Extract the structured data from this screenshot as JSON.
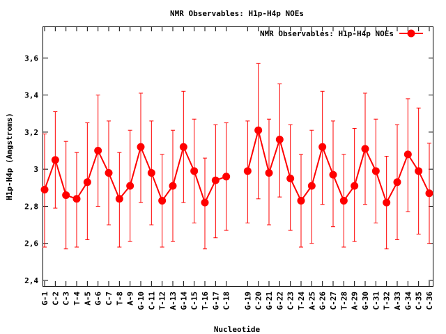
{
  "chart_data": {
    "type": "line",
    "title": "NMR Observables: H1p-H4p NOEs",
    "xlabel": "Nucleotide",
    "ylabel": "H1p-H4p (Angstroms)",
    "ylim": [
      2.37,
      3.77
    ],
    "yticks": [
      "2,4",
      "2,6",
      "2,8",
      "3",
      "3,2",
      "3,4",
      "3,6"
    ],
    "ytick_values": [
      2.4,
      2.6,
      2.8,
      3.0,
      3.2,
      3.4,
      3.6
    ],
    "xlim": [
      0,
      37
    ],
    "grid": false,
    "legend_position": "top-right",
    "series": [
      {
        "name": "NMR Observables: H1p-H4p NOEs",
        "color": "#ff0000",
        "marker": "circle",
        "points": [
          {
            "x": 1,
            "label": "G-1",
            "y": 2.89,
            "err_low": 2.58,
            "err_high": 3.19
          },
          {
            "x": 2,
            "label": "C-2",
            "y": 3.05,
            "err_low": 2.79,
            "err_high": 3.31
          },
          {
            "x": 3,
            "label": "C-3",
            "y": 2.86,
            "err_low": 2.57,
            "err_high": 3.15
          },
          {
            "x": 4,
            "label": "T-4",
            "y": 2.84,
            "err_low": 2.58,
            "err_high": 3.09
          },
          {
            "x": 5,
            "label": "A-5",
            "y": 2.93,
            "err_low": 2.62,
            "err_high": 3.25
          },
          {
            "x": 6,
            "label": "G-6",
            "y": 3.1,
            "err_low": 2.8,
            "err_high": 3.4
          },
          {
            "x": 7,
            "label": "C-7",
            "y": 2.98,
            "err_low": 2.7,
            "err_high": 3.26
          },
          {
            "x": 8,
            "label": "T-8",
            "y": 2.84,
            "err_low": 2.58,
            "err_high": 3.09
          },
          {
            "x": 9,
            "label": "A-9",
            "y": 2.91,
            "err_low": 2.61,
            "err_high": 3.21
          },
          {
            "x": 10,
            "label": "G-10",
            "y": 3.12,
            "err_low": 2.82,
            "err_high": 3.41
          },
          {
            "x": 11,
            "label": "C-11",
            "y": 2.98,
            "err_low": 2.7,
            "err_high": 3.26
          },
          {
            "x": 12,
            "label": "T-12",
            "y": 2.83,
            "err_low": 2.58,
            "err_high": 3.08
          },
          {
            "x": 13,
            "label": "A-13",
            "y": 2.91,
            "err_low": 2.61,
            "err_high": 3.21
          },
          {
            "x": 14,
            "label": "G-14",
            "y": 3.12,
            "err_low": 2.82,
            "err_high": 3.42
          },
          {
            "x": 15,
            "label": "C-15",
            "y": 2.99,
            "err_low": 2.71,
            "err_high": 3.27
          },
          {
            "x": 16,
            "label": "T-16",
            "y": 2.82,
            "err_low": 2.57,
            "err_high": 3.06
          },
          {
            "x": 17,
            "label": "G-17",
            "y": 2.94,
            "err_low": 2.63,
            "err_high": 3.24
          },
          {
            "x": 18,
            "label": "C-18",
            "y": 2.96,
            "err_low": 2.67,
            "err_high": 3.25
          },
          {
            "x": 20,
            "label": "G-19",
            "y": 2.99,
            "err_low": 2.71,
            "err_high": 3.26
          },
          {
            "x": 21,
            "label": "C-20",
            "y": 3.21,
            "err_low": 2.84,
            "err_high": 3.57
          },
          {
            "x": 22,
            "label": "G-21",
            "y": 2.98,
            "err_low": 2.7,
            "err_high": 3.27
          },
          {
            "x": 23,
            "label": "G-22",
            "y": 3.16,
            "err_low": 2.85,
            "err_high": 3.46
          },
          {
            "x": 24,
            "label": "C-23",
            "y": 2.95,
            "err_low": 2.67,
            "err_high": 3.24
          },
          {
            "x": 25,
            "label": "T-24",
            "y": 2.83,
            "err_low": 2.58,
            "err_high": 3.08
          },
          {
            "x": 26,
            "label": "A-25",
            "y": 2.91,
            "err_low": 2.6,
            "err_high": 3.21
          },
          {
            "x": 27,
            "label": "G-26",
            "y": 3.12,
            "err_low": 2.81,
            "err_high": 3.42
          },
          {
            "x": 28,
            "label": "C-27",
            "y": 2.97,
            "err_low": 2.69,
            "err_high": 3.26
          },
          {
            "x": 29,
            "label": "T-28",
            "y": 2.83,
            "err_low": 2.58,
            "err_high": 3.08
          },
          {
            "x": 30,
            "label": "A-29",
            "y": 2.91,
            "err_low": 2.61,
            "err_high": 3.22
          },
          {
            "x": 31,
            "label": "G-30",
            "y": 3.11,
            "err_low": 2.81,
            "err_high": 3.41
          },
          {
            "x": 32,
            "label": "C-31",
            "y": 2.99,
            "err_low": 2.71,
            "err_high": 3.27
          },
          {
            "x": 33,
            "label": "T-32",
            "y": 2.82,
            "err_low": 2.57,
            "err_high": 3.07
          },
          {
            "x": 34,
            "label": "A-33",
            "y": 2.93,
            "err_low": 2.62,
            "err_high": 3.24
          },
          {
            "x": 35,
            "label": "G-34",
            "y": 3.08,
            "err_low": 2.77,
            "err_high": 3.38
          },
          {
            "x": 36,
            "label": "C-35",
            "y": 2.99,
            "err_low": 2.65,
            "err_high": 3.33
          },
          {
            "x": 37,
            "label": "C-36",
            "y": 2.87,
            "err_low": 2.6,
            "err_high": 3.14
          }
        ]
      }
    ]
  }
}
